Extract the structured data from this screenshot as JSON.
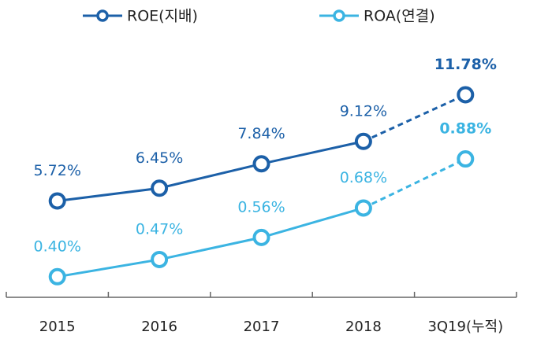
{
  "chart_data": {
    "type": "line",
    "categories": [
      "2015",
      "2016",
      "2017",
      "2018",
      "3Q19(누적)"
    ],
    "series": [
      {
        "name": "ROE(지배)",
        "color": "#1c60a8",
        "values": [
          5.72,
          6.45,
          7.84,
          9.12,
          11.78
        ],
        "value_labels": [
          "5.72%",
          "6.45%",
          "7.84%",
          "9.12%",
          "11.78%"
        ]
      },
      {
        "name": "ROA(연결)",
        "color": "#3bb4e2",
        "axis": "y2",
        "values": [
          0.4,
          0.47,
          0.56,
          0.68,
          0.88
        ],
        "value_labels": [
          "0.40%",
          "0.47%",
          "0.56%",
          "0.68%",
          "0.88%"
        ]
      }
    ],
    "segment_styles": [
      "solid",
      "solid",
      "solid",
      "dashed"
    ],
    "label_weights": [
      "normal",
      "normal",
      "normal",
      "normal",
      "bold"
    ],
    "ylim": [
      0,
      14
    ],
    "y2lim": [
      0.3,
      1.3
    ],
    "legend": "top"
  }
}
